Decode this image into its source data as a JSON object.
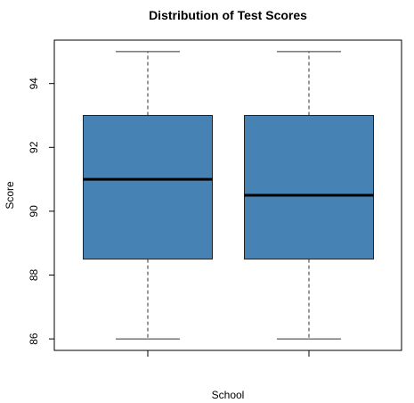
{
  "chart_data": {
    "type": "boxplot",
    "title": "Distribution of Test Scores",
    "xlabel": "School",
    "ylabel": "Score",
    "ylim": [
      85.64,
      95.36
    ],
    "yticks": [
      86,
      88,
      90,
      92,
      94
    ],
    "grid": false,
    "legend": "none",
    "box_fill": "#4682B4",
    "box_stroke": "#222222",
    "boxes": [
      {
        "whisker_low": 86,
        "q1": 88.5,
        "median": 91.0,
        "q3": 93,
        "whisker_high": 95
      },
      {
        "whisker_low": 86,
        "q1": 88.5,
        "median": 90.5,
        "q3": 93,
        "whisker_high": 95
      }
    ]
  }
}
